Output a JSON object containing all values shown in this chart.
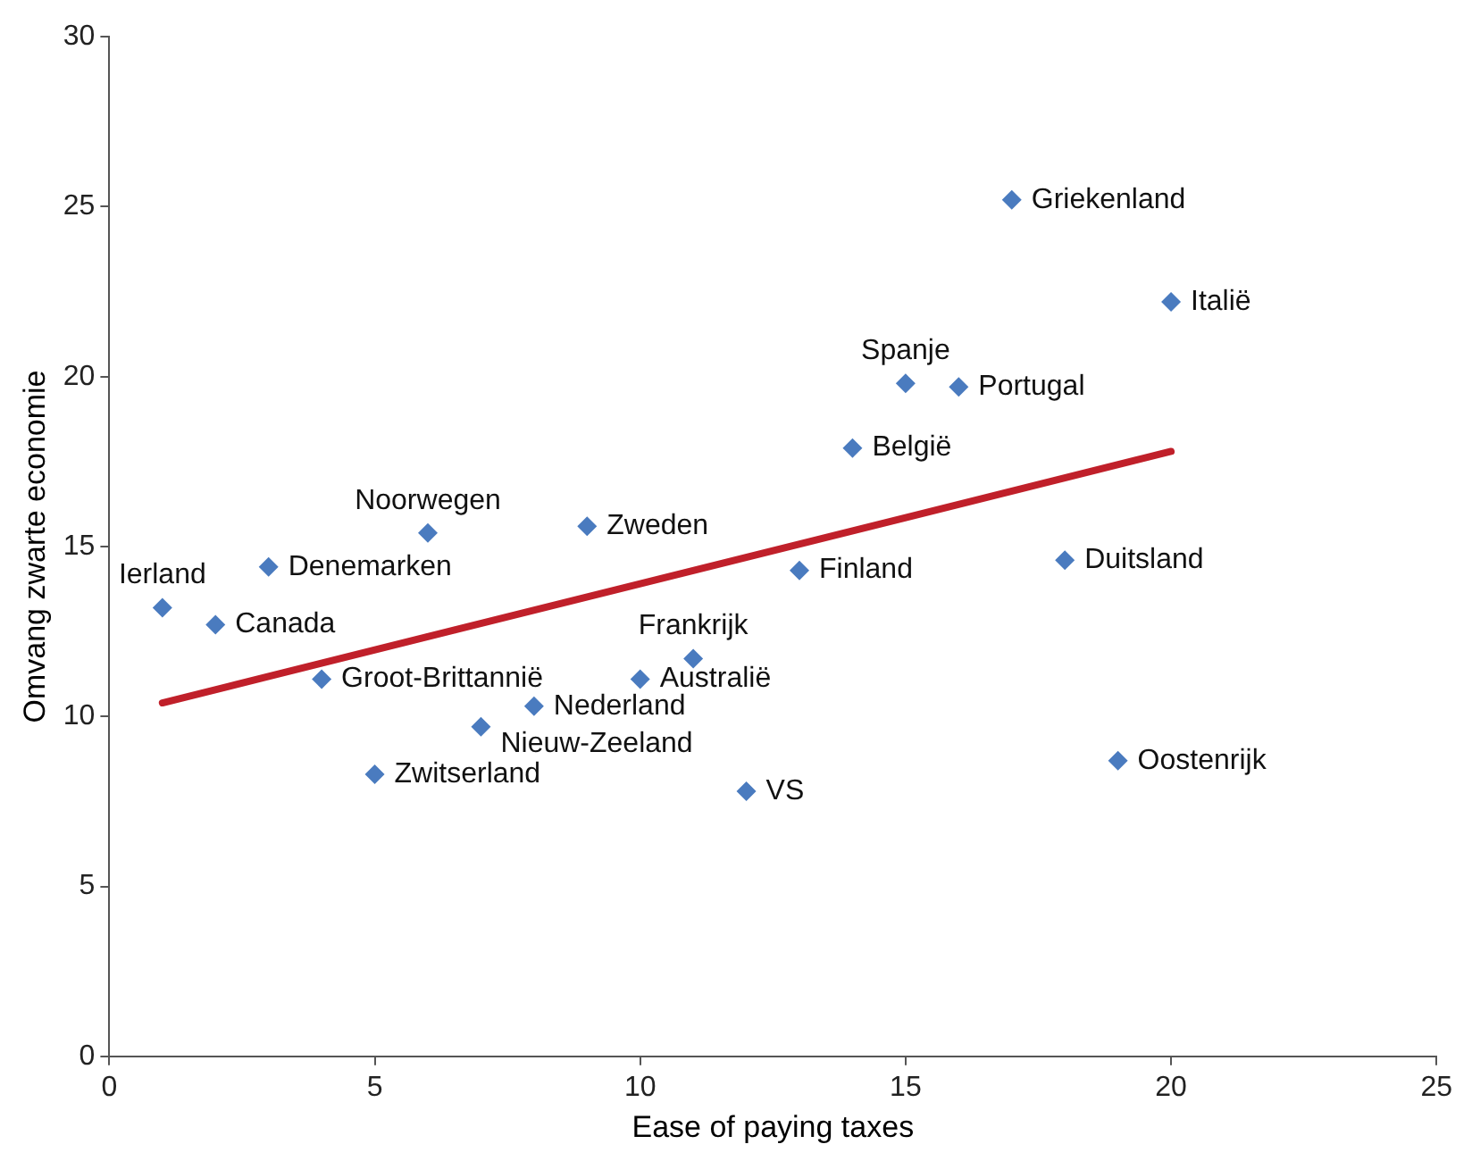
{
  "chart_data": {
    "type": "scatter",
    "xlabel": "Ease of paying taxes",
    "ylabel": "Omvang zwarte economie",
    "xlim": [
      0,
      25
    ],
    "xticks": [
      0,
      5,
      10,
      15,
      20,
      25
    ],
    "ylim": [
      0,
      30
    ],
    "yticks": [
      0,
      5,
      10,
      15,
      20,
      25,
      30
    ],
    "marker": "diamond",
    "legend": false,
    "series": [
      {
        "color": "#4a7bbf",
        "x": [
          1,
          2,
          3,
          4,
          5,
          6,
          7,
          8,
          9,
          10,
          11,
          12,
          13,
          14,
          15,
          16,
          17,
          18,
          19,
          20
        ],
        "values": [
          13.2,
          12.7,
          14.4,
          11.1,
          8.3,
          15.4,
          9.7,
          10.3,
          15.6,
          11.1,
          11.7,
          7.8,
          14.3,
          17.9,
          19.8,
          19.7,
          25.2,
          14.6,
          8.7,
          22.2
        ]
      },
      {
        "type": "line",
        "color": "#c0202a",
        "x": [
          1,
          20
        ],
        "values": [
          10.4,
          17.8
        ],
        "marker": "none"
      }
    ],
    "annotations": [
      {
        "text": "Ierland",
        "x": 1,
        "y": 13.2
      },
      {
        "text": "Canada",
        "x": 2,
        "y": 12.7
      },
      {
        "text": "Denemarken",
        "x": 3,
        "y": 14.4
      },
      {
        "text": "Groot-Brittannië",
        "x": 4,
        "y": 11.1
      },
      {
        "text": "Zwitserland",
        "x": 5,
        "y": 8.3
      },
      {
        "text": "Noorwegen",
        "x": 6,
        "y": 15.4
      },
      {
        "text": "Nieuw-Zeeland",
        "x": 7,
        "y": 9.7
      },
      {
        "text": "Nederland",
        "x": 8,
        "y": 10.3
      },
      {
        "text": "Zweden",
        "x": 9,
        "y": 15.6
      },
      {
        "text": "Australië",
        "x": 10,
        "y": 11.1
      },
      {
        "text": "Frankrijk",
        "x": 11,
        "y": 11.7
      },
      {
        "text": "VS",
        "x": 12,
        "y": 7.8
      },
      {
        "text": "Finland",
        "x": 13,
        "y": 14.3
      },
      {
        "text": "België",
        "x": 14,
        "y": 17.9
      },
      {
        "text": "Spanje",
        "x": 15,
        "y": 19.8
      },
      {
        "text": "Portugal",
        "x": 16,
        "y": 19.7
      },
      {
        "text": "Griekenland",
        "x": 17,
        "y": 25.2
      },
      {
        "text": "Duitsland",
        "x": 18,
        "y": 14.6
      },
      {
        "text": "Oostenrijk",
        "x": 19,
        "y": 8.7
      },
      {
        "text": "Italië",
        "x": 20,
        "y": 22.2
      }
    ]
  }
}
